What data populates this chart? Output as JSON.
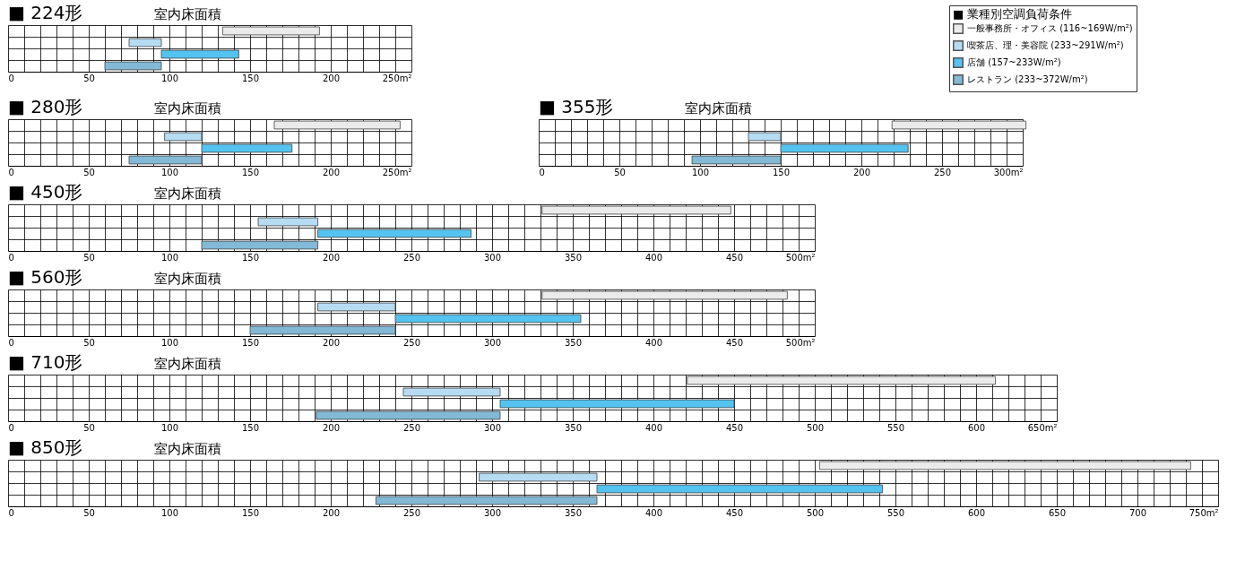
{
  "chart_data": [
    {
      "type": "bar",
      "orientation": "horizontal",
      "title": "■ 224形",
      "annotations": [
        "室内床面積"
      ],
      "categories": [
        null,
        null,
        null,
        null
      ],
      "legend": "right",
      "legend_title": "■ 業種別空調負荷条件",
      "series": [
        {
          "name": "一般事務所・オフィス (116~169W/m²)",
          "color": "#ebebeb",
          "values": [
            60,
            null,
            null,
            null
          ],
          "base": [
            133,
            null,
            null,
            null
          ]
        },
        {
          "name": "喫茶店、理・美容院 (233~291W/m²)",
          "color": "#b5dcf2",
          "values": [
            null,
            20,
            null,
            null
          ],
          "base": [
            null,
            75,
            null,
            null
          ]
        },
        {
          "name": "店舗 (157~233W/m²)",
          "color": "#55c3ef",
          "values": [
            null,
            null,
            48,
            null
          ],
          "base": [
            null,
            null,
            95,
            null
          ]
        },
        {
          "name": "レストラン (233~372W/m²)",
          "color": "#82b9d6",
          "values": [
            null,
            null,
            null,
            35
          ],
          "base": [
            null,
            null,
            null,
            60
          ]
        }
      ],
      "xlim": [
        0,
        250
      ],
      "xticks": [
        0,
        {
          "value": 10,
          "label": null
        },
        {
          "value": 20,
          "label": null
        },
        {
          "value": 30,
          "label": null
        },
        {
          "value": 40,
          "label": null
        },
        50,
        {
          "value": 60,
          "label": null
        },
        {
          "value": 70,
          "label": null
        },
        {
          "value": 80,
          "label": null
        },
        {
          "value": 90,
          "label": null
        },
        100,
        {
          "value": 110,
          "label": null
        },
        {
          "value": 120,
          "label": null
        },
        {
          "value": 130,
          "label": null
        },
        {
          "value": 140,
          "label": null
        },
        150,
        {
          "value": 160,
          "label": null
        },
        {
          "value": 170,
          "label": null
        },
        {
          "value": 180,
          "label": null
        },
        {
          "value": 190,
          "label": null
        },
        200,
        {
          "value": 210,
          "label": null
        },
        {
          "value": 220,
          "label": null
        },
        {
          "value": 230,
          "label": null
        },
        {
          "value": 240,
          "label": null
        },
        {
          "value": 250,
          "label": "250m²"
        }
      ],
      "grid": true
    },
    {
      "type": "bar",
      "orientation": "horizontal",
      "title": "■ 280形",
      "annotations": [
        "室内床面積"
      ],
      "categories": [
        null,
        null,
        null,
        null
      ],
      "series": [
        {
          "color": "#ebebeb",
          "values": [
            78,
            null,
            null,
            null
          ],
          "base": [
            165,
            null,
            null,
            null
          ]
        },
        {
          "color": "#b5dcf2",
          "values": [
            null,
            23,
            null,
            null
          ],
          "base": [
            null,
            97,
            null,
            null
          ]
        },
        {
          "color": "#55c3ef",
          "values": [
            null,
            null,
            56,
            null
          ],
          "base": [
            null,
            null,
            120,
            null
          ]
        },
        {
          "color": "#82b9d6",
          "values": [
            null,
            null,
            null,
            45
          ],
          "base": [
            null,
            null,
            null,
            75
          ]
        }
      ],
      "xlim": [
        0,
        250
      ],
      "xticks": [
        0,
        {
          "value": 10,
          "label": null
        },
        {
          "value": 20,
          "label": null
        },
        {
          "value": 30,
          "label": null
        },
        {
          "value": 40,
          "label": null
        },
        50,
        {
          "value": 60,
          "label": null
        },
        {
          "value": 70,
          "label": null
        },
        {
          "value": 80,
          "label": null
        },
        {
          "value": 90,
          "label": null
        },
        100,
        {
          "value": 110,
          "label": null
        },
        {
          "value": 120,
          "label": null
        },
        {
          "value": 130,
          "label": null
        },
        {
          "value": 140,
          "label": null
        },
        150,
        {
          "value": 160,
          "label": null
        },
        {
          "value": 170,
          "label": null
        },
        {
          "value": 180,
          "label": null
        },
        {
          "value": 190,
          "label": null
        },
        200,
        {
          "value": 210,
          "label": null
        },
        {
          "value": 220,
          "label": null
        },
        {
          "value": 230,
          "label": null
        },
        {
          "value": 240,
          "label": null
        },
        {
          "value": 250,
          "label": "250m²"
        }
      ],
      "grid": true
    },
    {
      "type": "bar",
      "orientation": "horizontal",
      "title": "■ 355形",
      "annotations": [
        "室内床面積"
      ],
      "categories": [
        null,
        null,
        null,
        null
      ],
      "series": [
        {
          "color": "#ebebeb",
          "values": [
            83,
            null,
            null,
            null
          ],
          "base": [
            219,
            null,
            null,
            null
          ]
        },
        {
          "color": "#b5dcf2",
          "values": [
            null,
            20,
            null,
            null
          ],
          "base": [
            null,
            130,
            null,
            null
          ]
        },
        {
          "color": "#55c3ef",
          "values": [
            null,
            null,
            79,
            null
          ],
          "base": [
            null,
            null,
            150,
            null
          ]
        },
        {
          "color": "#82b9d6",
          "values": [
            null,
            null,
            null,
            55
          ],
          "base": [
            null,
            null,
            null,
            95
          ]
        }
      ],
      "xlim": [
        0,
        300
      ],
      "xticks": [
        0,
        {
          "value": 10,
          "label": null
        },
        {
          "value": 20,
          "label": null
        },
        {
          "value": 30,
          "label": null
        },
        {
          "value": 40,
          "label": null
        },
        50,
        {
          "value": 60,
          "label": null
        },
        {
          "value": 70,
          "label": null
        },
        {
          "value": 80,
          "label": null
        },
        {
          "value": 90,
          "label": null
        },
        100,
        {
          "value": 110,
          "label": null
        },
        {
          "value": 120,
          "label": null
        },
        {
          "value": 130,
          "label": null
        },
        {
          "value": 140,
          "label": null
        },
        150,
        {
          "value": 160,
          "label": null
        },
        {
          "value": 170,
          "label": null
        },
        {
          "value": 180,
          "label": null
        },
        {
          "value": 190,
          "label": null
        },
        200,
        {
          "value": 210,
          "label": null
        },
        {
          "value": 220,
          "label": null
        },
        {
          "value": 230,
          "label": null
        },
        {
          "value": 240,
          "label": null
        },
        250,
        {
          "value": 260,
          "label": null
        },
        {
          "value": 270,
          "label": null
        },
        {
          "value": 280,
          "label": null
        },
        {
          "value": 290,
          "label": null
        },
        {
          "value": 300,
          "label": "300m²"
        }
      ],
      "grid": true
    },
    {
      "type": "bar",
      "orientation": "horizontal",
      "title": "■ 450形",
      "annotations": [
        "室内床面積"
      ],
      "categories": [
        null,
        null,
        null,
        null
      ],
      "series": [
        {
          "color": "#ebebeb",
          "values": [
            117,
            null,
            null,
            null
          ],
          "base": [
            331,
            null,
            null,
            null
          ]
        },
        {
          "color": "#b5dcf2",
          "values": [
            null,
            37,
            null,
            null
          ],
          "base": [
            null,
            155,
            null,
            null
          ]
        },
        {
          "color": "#55c3ef",
          "values": [
            null,
            null,
            95,
            null
          ],
          "base": [
            null,
            null,
            192,
            null
          ]
        },
        {
          "color": "#82b9d6",
          "values": [
            null,
            null,
            null,
            72
          ],
          "base": [
            null,
            null,
            null,
            120
          ]
        }
      ],
      "xlim": [
        0,
        500
      ],
      "xticks": [
        0,
        {
          "value": 10,
          "label": null
        },
        {
          "value": 20,
          "label": null
        },
        {
          "value": 30,
          "label": null
        },
        {
          "value": 40,
          "label": null
        },
        50,
        {
          "value": 60,
          "label": null
        },
        {
          "value": 70,
          "label": null
        },
        {
          "value": 80,
          "label": null
        },
        {
          "value": 90,
          "label": null
        },
        100,
        {
          "value": 110,
          "label": null
        },
        {
          "value": 120,
          "label": null
        },
        {
          "value": 130,
          "label": null
        },
        {
          "value": 140,
          "label": null
        },
        150,
        {
          "value": 160,
          "label": null
        },
        {
          "value": 170,
          "label": null
        },
        {
          "value": 180,
          "label": null
        },
        {
          "value": 190,
          "label": null
        },
        200,
        {
          "value": 210,
          "label": null
        },
        {
          "value": 220,
          "label": null
        },
        {
          "value": 230,
          "label": null
        },
        {
          "value": 240,
          "label": null
        },
        250,
        {
          "value": 260,
          "label": null
        },
        {
          "value": 270,
          "label": null
        },
        {
          "value": 280,
          "label": null
        },
        {
          "value": 290,
          "label": null
        },
        300,
        {
          "value": 310,
          "label": null
        },
        {
          "value": 320,
          "label": null
        },
        {
          "value": 330,
          "label": null
        },
        {
          "value": 340,
          "label": null
        },
        350,
        {
          "value": 360,
          "label": null
        },
        {
          "value": 370,
          "label": null
        },
        {
          "value": 380,
          "label": null
        },
        {
          "value": 390,
          "label": null
        },
        400,
        {
          "value": 410,
          "label": null
        },
        {
          "value": 420,
          "label": null
        },
        {
          "value": 430,
          "label": null
        },
        {
          "value": 440,
          "label": null
        },
        450,
        {
          "value": 460,
          "label": null
        },
        {
          "value": 470,
          "label": null
        },
        {
          "value": 480,
          "label": null
        },
        {
          "value": 490,
          "label": null
        },
        {
          "value": 500,
          "label": "500m²"
        }
      ],
      "grid": true
    },
    {
      "type": "bar",
      "orientation": "horizontal",
      "title": "■ 560形",
      "annotations": [
        "室内床面積"
      ],
      "categories": [
        null,
        null,
        null,
        null
      ],
      "series": [
        {
          "color": "#ebebeb",
          "values": [
            152,
            null,
            null,
            null
          ],
          "base": [
            331,
            null,
            null,
            null
          ]
        },
        {
          "color": "#b5dcf2",
          "values": [
            null,
            48,
            null,
            null
          ],
          "base": [
            null,
            192,
            null,
            null
          ]
        },
        {
          "color": "#55c3ef",
          "values": [
            null,
            null,
            115,
            null
          ],
          "base": [
            null,
            null,
            240,
            null
          ]
        },
        {
          "color": "#82b9d6",
          "values": [
            null,
            null,
            null,
            90
          ],
          "base": [
            null,
            null,
            null,
            150
          ]
        }
      ],
      "xlim": [
        0,
        500
      ],
      "xticks": [
        0,
        {
          "value": 10,
          "label": null
        },
        {
          "value": 20,
          "label": null
        },
        {
          "value": 30,
          "label": null
        },
        {
          "value": 40,
          "label": null
        },
        50,
        {
          "value": 60,
          "label": null
        },
        {
          "value": 70,
          "label": null
        },
        {
          "value": 80,
          "label": null
        },
        {
          "value": 90,
          "label": null
        },
        100,
        {
          "value": 110,
          "label": null
        },
        {
          "value": 120,
          "label": null
        },
        {
          "value": 130,
          "label": null
        },
        {
          "value": 140,
          "label": null
        },
        150,
        {
          "value": 160,
          "label": null
        },
        {
          "value": 170,
          "label": null
        },
        {
          "value": 180,
          "label": null
        },
        {
          "value": 190,
          "label": null
        },
        200,
        {
          "value": 210,
          "label": null
        },
        {
          "value": 220,
          "label": null
        },
        {
          "value": 230,
          "label": null
        },
        {
          "value": 240,
          "label": null
        },
        250,
        {
          "value": 260,
          "label": null
        },
        {
          "value": 270,
          "label": null
        },
        {
          "value": 280,
          "label": null
        },
        {
          "value": 290,
          "label": null
        },
        300,
        {
          "value": 310,
          "label": null
        },
        {
          "value": 320,
          "label": null
        },
        {
          "value": 330,
          "label": null
        },
        {
          "value": 340,
          "label": null
        },
        350,
        {
          "value": 360,
          "label": null
        },
        {
          "value": 370,
          "label": null
        },
        {
          "value": 380,
          "label": null
        },
        {
          "value": 390,
          "label": null
        },
        400,
        {
          "value": 410,
          "label": null
        },
        {
          "value": 420,
          "label": null
        },
        {
          "value": 430,
          "label": null
        },
        {
          "value": 440,
          "label": null
        },
        450,
        {
          "value": 460,
          "label": null
        },
        {
          "value": 470,
          "label": null
        },
        {
          "value": 480,
          "label": null
        },
        {
          "value": 490,
          "label": null
        },
        {
          "value": 500,
          "label": "500m²"
        }
      ],
      "grid": true
    },
    {
      "type": "bar",
      "orientation": "horizontal",
      "title": "■ 710形",
      "annotations": [
        "室内床面積"
      ],
      "categories": [
        null,
        null,
        null,
        null
      ],
      "series": [
        {
          "color": "#ebebeb",
          "values": [
            191,
            null,
            null,
            null
          ],
          "base": [
            421,
            null,
            null,
            null
          ]
        },
        {
          "color": "#b5dcf2",
          "values": [
            null,
            60,
            null,
            null
          ],
          "base": [
            null,
            245,
            null,
            null
          ]
        },
        {
          "color": "#55c3ef",
          "values": [
            null,
            null,
            145,
            null
          ],
          "base": [
            null,
            null,
            305,
            null
          ]
        },
        {
          "color": "#82b9d6",
          "values": [
            null,
            null,
            null,
            114
          ],
          "base": [
            null,
            null,
            null,
            191
          ]
        }
      ],
      "xlim": [
        0,
        650
      ],
      "xticks": [
        0,
        {
          "value": 10,
          "label": null
        },
        {
          "value": 20,
          "label": null
        },
        {
          "value": 30,
          "label": null
        },
        {
          "value": 40,
          "label": null
        },
        50,
        {
          "value": 60,
          "label": null
        },
        {
          "value": 70,
          "label": null
        },
        {
          "value": 80,
          "label": null
        },
        {
          "value": 90,
          "label": null
        },
        100,
        {
          "value": 110,
          "label": null
        },
        {
          "value": 120,
          "label": null
        },
        {
          "value": 130,
          "label": null
        },
        {
          "value": 140,
          "label": null
        },
        150,
        {
          "value": 160,
          "label": null
        },
        {
          "value": 170,
          "label": null
        },
        {
          "value": 180,
          "label": null
        },
        {
          "value": 190,
          "label": null
        },
        200,
        {
          "value": 210,
          "label": null
        },
        {
          "value": 220,
          "label": null
        },
        {
          "value": 230,
          "label": null
        },
        {
          "value": 240,
          "label": null
        },
        250,
        {
          "value": 260,
          "label": null
        },
        {
          "value": 270,
          "label": null
        },
        {
          "value": 280,
          "label": null
        },
        {
          "value": 290,
          "label": null
        },
        300,
        {
          "value": 310,
          "label": null
        },
        {
          "value": 320,
          "label": null
        },
        {
          "value": 330,
          "label": null
        },
        {
          "value": 340,
          "label": null
        },
        350,
        {
          "value": 360,
          "label": null
        },
        {
          "value": 370,
          "label": null
        },
        {
          "value": 380,
          "label": null
        },
        {
          "value": 390,
          "label": null
        },
        400,
        {
          "value": 410,
          "label": null
        },
        {
          "value": 420,
          "label": null
        },
        {
          "value": 430,
          "label": null
        },
        {
          "value": 440,
          "label": null
        },
        450,
        {
          "value": 460,
          "label": null
        },
        {
          "value": 470,
          "label": null
        },
        {
          "value": 480,
          "label": null
        },
        {
          "value": 490,
          "label": null
        },
        500,
        {
          "value": 510,
          "label": null
        },
        {
          "value": 520,
          "label": null
        },
        {
          "value": 530,
          "label": null
        },
        {
          "value": 540,
          "label": null
        },
        550,
        {
          "value": 560,
          "label": null
        },
        {
          "value": 570,
          "label": null
        },
        {
          "value": 580,
          "label": null
        },
        {
          "value": 590,
          "label": null
        },
        600,
        {
          "value": 610,
          "label": null
        },
        {
          "value": 620,
          "label": null
        },
        {
          "value": 630,
          "label": null
        },
        {
          "value": 640,
          "label": null
        },
        {
          "value": 650,
          "label": "650m²"
        }
      ],
      "grid": true
    },
    {
      "type": "bar",
      "orientation": "horizontal",
      "title": "■ 850形",
      "annotations": [
        "室内床面積"
      ],
      "categories": [
        null,
        null,
        null,
        null
      ],
      "series": [
        {
          "color": "#ebebeb",
          "values": [
            230,
            null,
            null,
            null
          ],
          "base": [
            503,
            null,
            null,
            null
          ]
        },
        {
          "color": "#b5dcf2",
          "values": [
            null,
            73,
            null,
            null
          ],
          "base": [
            null,
            292,
            null,
            null
          ]
        },
        {
          "color": "#55c3ef",
          "values": [
            null,
            null,
            177,
            null
          ],
          "base": [
            null,
            null,
            365,
            null
          ]
        },
        {
          "color": "#82b9d6",
          "values": [
            null,
            null,
            null,
            137
          ],
          "base": [
            null,
            null,
            null,
            228
          ]
        }
      ],
      "xlim": [
        0,
        750
      ],
      "xticks": [
        0,
        {
          "value": 10,
          "label": null
        },
        {
          "value": 20,
          "label": null
        },
        {
          "value": 30,
          "label": null
        },
        {
          "value": 40,
          "label": null
        },
        50,
        {
          "value": 60,
          "label": null
        },
        {
          "value": 70,
          "label": null
        },
        {
          "value": 80,
          "label": null
        },
        {
          "value": 90,
          "label": null
        },
        100,
        {
          "value": 110,
          "label": null
        },
        {
          "value": 120,
          "label": null
        },
        {
          "value": 130,
          "label": null
        },
        {
          "value": 140,
          "label": null
        },
        150,
        {
          "value": 160,
          "label": null
        },
        {
          "value": 170,
          "label": null
        },
        {
          "value": 180,
          "label": null
        },
        {
          "value": 190,
          "label": null
        },
        200,
        {
          "value": 210,
          "label": null
        },
        {
          "value": 220,
          "label": null
        },
        {
          "value": 230,
          "label": null
        },
        {
          "value": 240,
          "label": null
        },
        250,
        {
          "value": 260,
          "label": null
        },
        {
          "value": 270,
          "label": null
        },
        {
          "value": 280,
          "label": null
        },
        {
          "value": 290,
          "label": null
        },
        300,
        {
          "value": 310,
          "label": null
        },
        {
          "value": 320,
          "label": null
        },
        {
          "value": 330,
          "label": null
        },
        {
          "value": 340,
          "label": null
        },
        350,
        {
          "value": 360,
          "label": null
        },
        {
          "value": 370,
          "label": null
        },
        {
          "value": 380,
          "label": null
        },
        {
          "value": 390,
          "label": null
        },
        400,
        {
          "value": 410,
          "label": null
        },
        {
          "value": 420,
          "label": null
        },
        {
          "value": 430,
          "label": null
        },
        {
          "value": 440,
          "label": null
        },
        450,
        {
          "value": 460,
          "label": null
        },
        {
          "value": 470,
          "label": null
        },
        {
          "value": 480,
          "label": null
        },
        {
          "value": 490,
          "label": null
        },
        500,
        {
          "value": 510,
          "label": null
        },
        {
          "value": 520,
          "label": null
        },
        {
          "value": 530,
          "label": null
        },
        {
          "value": 540,
          "label": null
        },
        550,
        {
          "value": 560,
          "label": null
        },
        {
          "value": 570,
          "label": null
        },
        {
          "value": 580,
          "label": null
        },
        {
          "value": 590,
          "label": null
        },
        600,
        {
          "value": 610,
          "label": null
        },
        {
          "value": 620,
          "label": null
        },
        {
          "value": 630,
          "label": null
        },
        {
          "value": 640,
          "label": null
        },
        650,
        {
          "value": 660,
          "label": null
        },
        {
          "value": 670,
          "label": null
        },
        {
          "value": 680,
          "label": null
        },
        {
          "value": 690,
          "label": null
        },
        700,
        {
          "value": 710,
          "label": null
        },
        {
          "value": 720,
          "label": null
        },
        {
          "value": 730,
          "label": null
        },
        {
          "value": 740,
          "label": null
        },
        {
          "value": 750,
          "label": "750m²"
        }
      ],
      "grid": true
    }
  ]
}
